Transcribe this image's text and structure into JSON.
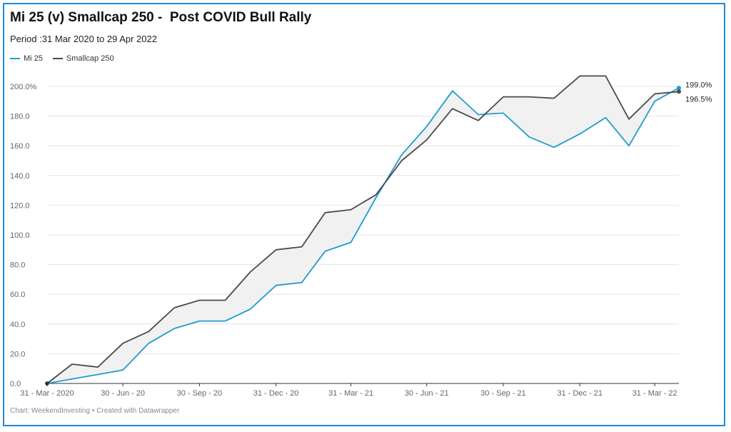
{
  "header": {
    "title": "Mi 25 (v) Smallcap 250 -  Post COVID Bull Rally",
    "subtitle": "Period :31 Mar 2020 to 29 Apr 2022"
  },
  "footer": {
    "source": "Chart: WeekendInvesting • Created with Datawrapper"
  },
  "chart_data": {
    "type": "line",
    "title": "Mi 25 (v) Smallcap 250 -  Post COVID Bull Rally",
    "subtitle": "Period :31 Mar 2020 to 29 Apr 2022",
    "xlabel": "",
    "ylabel": "",
    "ylim": [
      0,
      200
    ],
    "y_ticks": [
      "0.0",
      "20.0",
      "40.0",
      "60.0",
      "80.0",
      "100.0",
      "120.0",
      "140.0",
      "160.0",
      "180.0",
      "200.0%"
    ],
    "x_ticks": [
      "31 - Mar - 2020",
      "30 - Jun - 20",
      "30 - Sep - 20",
      "31 - Dec - 20",
      "31 - Mar - 21",
      "30 - Jun - 21",
      "30 - Sep - 21",
      "31 - Dec - 21",
      "31 - Mar - 22"
    ],
    "grid": true,
    "legend_position": "top-left",
    "x": [
      "2020-03-31",
      "2020-04-30",
      "2020-05-31",
      "2020-06-30",
      "2020-07-31",
      "2020-08-31",
      "2020-09-30",
      "2020-10-31",
      "2020-11-30",
      "2020-12-31",
      "2021-01-31",
      "2021-02-28",
      "2021-03-31",
      "2021-04-30",
      "2021-05-31",
      "2021-06-30",
      "2021-07-31",
      "2021-08-31",
      "2021-09-30",
      "2021-10-31",
      "2021-11-30",
      "2021-12-31",
      "2022-01-31",
      "2022-02-28",
      "2022-03-31",
      "2022-04-29"
    ],
    "series": [
      {
        "name": "Mi 25",
        "color": "#1f9bd1",
        "values": [
          0,
          3,
          6,
          9,
          27,
          37,
          42,
          42,
          50,
          66,
          68,
          89,
          95,
          125,
          154,
          173,
          197,
          181,
          182,
          166,
          159,
          168,
          179,
          160,
          190,
          199
        ],
        "end_label": "199.0%"
      },
      {
        "name": "Smallcap 250",
        "color": "#4a4a4a",
        "values": [
          0,
          13,
          11,
          27,
          35,
          51,
          56,
          56,
          75,
          90,
          92,
          115,
          117,
          127,
          150,
          164,
          185,
          177,
          193,
          193,
          192,
          207,
          207,
          178,
          195,
          196.5
        ],
        "end_label": "196.5%"
      }
    ]
  }
}
